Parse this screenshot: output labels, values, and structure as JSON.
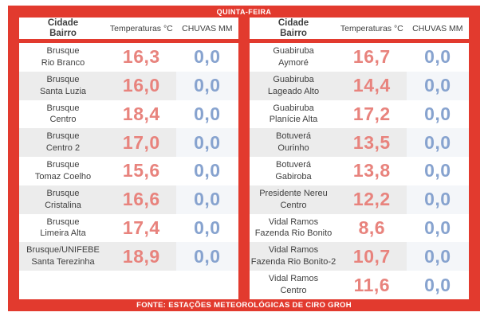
{
  "banner": {
    "title": "QUINTA-FEIRA"
  },
  "footer": {
    "text": "FONTE: ESTAÇÕES METEOROLÓGICAS DE CIRO GROH"
  },
  "header": {
    "location_line1": "Cidade",
    "location_line2": "Bairro",
    "temperature": "Temperaturas °C",
    "rain": "CHUVAS MM"
  },
  "colors": {
    "frame_red": "#E23A2E",
    "text": "#3F3F3F",
    "temperature": "#E8837D",
    "rain": "#87A3CF",
    "stripe": "#ECECEC",
    "stripe_rain": "#F4F6F9"
  },
  "tables": {
    "left": {
      "rows": [
        {
          "city": "Brusque",
          "bairro": "Rio Branco",
          "temp": "16,3",
          "rain": "0,0"
        },
        {
          "city": "Brusque",
          "bairro": "Santa Luzia",
          "temp": "16,0",
          "rain": "0,0"
        },
        {
          "city": "Brusque",
          "bairro": "Centro",
          "temp": "18,4",
          "rain": "0,0"
        },
        {
          "city": "Brusque",
          "bairro": "Centro 2",
          "temp": "17,0",
          "rain": "0,0"
        },
        {
          "city": "Brusque",
          "bairro": "Tomaz Coelho",
          "temp": "15,6",
          "rain": "0,0"
        },
        {
          "city": "Brusque",
          "bairro": "Cristalina",
          "temp": "16,6",
          "rain": "0,0"
        },
        {
          "city": "Brusque",
          "bairro": "Limeira Alta",
          "temp": "17,4",
          "rain": "0,0"
        },
        {
          "city": "Brusque/UNIFEBE",
          "bairro": "Santa Terezinha",
          "temp": "18,9",
          "rain": "0,0"
        }
      ]
    },
    "right": {
      "rows": [
        {
          "city": "Guabiruba",
          "bairro": "Aymoré",
          "temp": "16,7",
          "rain": "0,0"
        },
        {
          "city": "Guabiruba",
          "bairro": "Lageado Alto",
          "temp": "14,4",
          "rain": "0,0"
        },
        {
          "city": "Guabiruba",
          "bairro": "Planície Alta",
          "temp": "17,2",
          "rain": "0,0"
        },
        {
          "city": "Botuverá",
          "bairro": "Ourinho",
          "temp": "13,5",
          "rain": "0,0"
        },
        {
          "city": "Botuverá",
          "bairro": "Gabiroba",
          "temp": "13,8",
          "rain": "0,0"
        },
        {
          "city": "Presidente Nereu",
          "bairro": "Centro",
          "temp": "12,2",
          "rain": "0,0"
        },
        {
          "city": "Vidal Ramos",
          "bairro": "Fazenda Rio Bonito",
          "temp": "8,6",
          "rain": "0,0"
        },
        {
          "city": "Vidal Ramos",
          "bairro": "Fazenda Rio Bonito-2",
          "temp": "10,7",
          "rain": "0,0"
        },
        {
          "city": "Vidal Ramos",
          "bairro": "Centro",
          "temp": "11,6",
          "rain": "0,0"
        }
      ]
    }
  },
  "chart_data": {
    "type": "table",
    "title": "QUINTA-FEIRA",
    "source": "FONTE: ESTAÇÕES METEOROLÓGICAS DE CIRO GROH",
    "columns": [
      "Cidade / Bairro",
      "Temperaturas °C",
      "CHUVAS MM"
    ],
    "rows": [
      {
        "cidade": "Brusque",
        "bairro": "Rio Branco",
        "temperatura_c": 16.3,
        "chuvas_mm": 0.0
      },
      {
        "cidade": "Brusque",
        "bairro": "Santa Luzia",
        "temperatura_c": 16.0,
        "chuvas_mm": 0.0
      },
      {
        "cidade": "Brusque",
        "bairro": "Centro",
        "temperatura_c": 18.4,
        "chuvas_mm": 0.0
      },
      {
        "cidade": "Brusque",
        "bairro": "Centro 2",
        "temperatura_c": 17.0,
        "chuvas_mm": 0.0
      },
      {
        "cidade": "Brusque",
        "bairro": "Tomaz Coelho",
        "temperatura_c": 15.6,
        "chuvas_mm": 0.0
      },
      {
        "cidade": "Brusque",
        "bairro": "Cristalina",
        "temperatura_c": 16.6,
        "chuvas_mm": 0.0
      },
      {
        "cidade": "Brusque",
        "bairro": "Limeira Alta",
        "temperatura_c": 17.4,
        "chuvas_mm": 0.0
      },
      {
        "cidade": "Brusque/UNIFEBE",
        "bairro": "Santa Terezinha",
        "temperatura_c": 18.9,
        "chuvas_mm": 0.0
      },
      {
        "cidade": "Guabiruba",
        "bairro": "Aymoré",
        "temperatura_c": 16.7,
        "chuvas_mm": 0.0
      },
      {
        "cidade": "Guabiruba",
        "bairro": "Lageado Alto",
        "temperatura_c": 14.4,
        "chuvas_mm": 0.0
      },
      {
        "cidade": "Guabiruba",
        "bairro": "Planície Alta",
        "temperatura_c": 17.2,
        "chuvas_mm": 0.0
      },
      {
        "cidade": "Botuverá",
        "bairro": "Ourinho",
        "temperatura_c": 13.5,
        "chuvas_mm": 0.0
      },
      {
        "cidade": "Botuverá",
        "bairro": "Gabiroba",
        "temperatura_c": 13.8,
        "chuvas_mm": 0.0
      },
      {
        "cidade": "Presidente Nereu",
        "bairro": "Centro",
        "temperatura_c": 12.2,
        "chuvas_mm": 0.0
      },
      {
        "cidade": "Vidal Ramos",
        "bairro": "Fazenda Rio Bonito",
        "temperatura_c": 8.6,
        "chuvas_mm": 0.0
      },
      {
        "cidade": "Vidal Ramos",
        "bairro": "Fazenda Rio Bonito-2",
        "temperatura_c": 10.7,
        "chuvas_mm": 0.0
      },
      {
        "cidade": "Vidal Ramos",
        "bairro": "Centro",
        "temperatura_c": 11.6,
        "chuvas_mm": 0.0
      }
    ]
  }
}
